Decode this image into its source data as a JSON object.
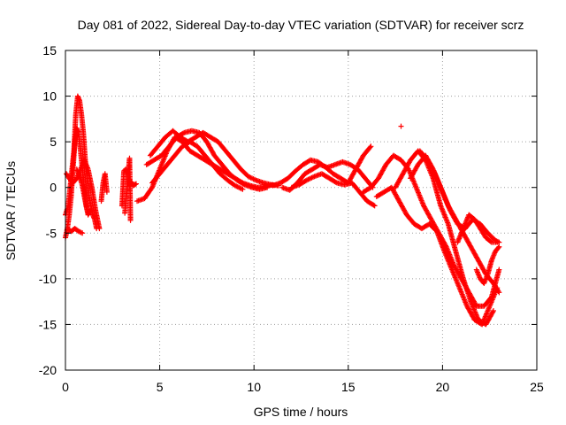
{
  "chart_data": {
    "type": "scatter",
    "title": "Day 081 of 2022, Sidereal Day-to-day VTEC variation (SDTVAR) for receiver scrz",
    "xlabel": "GPS time / hours",
    "ylabel": "SDTVAR / TECUs",
    "xlim": [
      0,
      25
    ],
    "ylim": [
      -20,
      15
    ],
    "xticks": [
      0,
      5,
      10,
      15,
      20,
      25
    ],
    "yticks": [
      -20,
      -15,
      -10,
      -5,
      0,
      5,
      10,
      15
    ],
    "xtick_labels": [
      "0",
      "5",
      "10",
      "15",
      "20",
      "25"
    ],
    "ytick_labels": [
      "-20",
      "-15",
      "-10",
      "-5",
      "0",
      "5",
      "10",
      "15"
    ],
    "grid": true,
    "marker": "+",
    "color": "#ff0000",
    "series": [
      {
        "name": "arc-early-spike",
        "x": [
          0.0,
          0.15,
          0.3,
          0.45,
          0.55,
          0.65,
          0.75,
          0.85,
          0.95,
          1.05,
          1.15,
          1.25,
          1.35,
          1.45,
          1.55,
          1.65
        ],
        "y": [
          -3,
          -2,
          1,
          4,
          8,
          10,
          9.5,
          8,
          6,
          3,
          1,
          -1,
          -2,
          -3,
          -3.5,
          -4.5
        ]
      },
      {
        "name": "arc-early-b",
        "x": [
          0.0,
          0.1,
          0.2,
          0.3,
          0.4,
          0.5,
          0.6,
          0.7,
          0.8,
          0.9,
          1.0,
          1.1,
          1.2
        ],
        "y": [
          -5.5,
          -4.5,
          -3,
          -1,
          2,
          5,
          6.5,
          6,
          4,
          2,
          0,
          -2,
          -2.8
        ]
      },
      {
        "name": "arc-early-c",
        "x": [
          0.05,
          0.2,
          0.4,
          0.6,
          0.8,
          1.0,
          1.2,
          1.4,
          1.6,
          1.8
        ],
        "y": [
          1.5,
          1,
          0.5,
          1,
          2,
          3,
          2,
          0,
          -2.5,
          -4.5
        ]
      },
      {
        "name": "arc-early-d",
        "x": [
          0.1,
          0.3,
          0.5,
          0.7,
          0.9
        ],
        "y": [
          -4.5,
          -4.8,
          -4.5,
          -4.8,
          -5
        ]
      },
      {
        "name": "arc-early-e",
        "x": [
          0.6,
          0.75,
          0.9,
          1.05,
          1.2,
          1.35
        ],
        "y": [
          2,
          1.2,
          0.2,
          -1.5,
          -3,
          -2.5
        ]
      },
      {
        "name": "arc-2h",
        "x": [
          1.9,
          2.0,
          2.1,
          2.2
        ],
        "y": [
          -1.5,
          0.5,
          1.5,
          -0.5
        ]
      },
      {
        "name": "arc-3h",
        "x": [
          3.0,
          3.1,
          3.2,
          3.3,
          3.4,
          3.5,
          3.6,
          3.75
        ],
        "y": [
          -2,
          1.8,
          2,
          1.5,
          0.2,
          0.6,
          0.2,
          0.4
        ]
      },
      {
        "name": "points-3h-lone",
        "x": [
          3.15,
          3.4,
          3.45
        ],
        "y": [
          -2.8,
          3.2,
          -3.6
        ]
      },
      {
        "name": "arc-main-a",
        "x": [
          3.8,
          4.2,
          4.6,
          5.0,
          5.4,
          5.8,
          6.2,
          6.6,
          7.0,
          7.4,
          7.8,
          8.2,
          8.6,
          9.0,
          9.4,
          9.8,
          10.2,
          10.6,
          11.0
        ],
        "y": [
          -1.5,
          -1.2,
          0,
          2,
          4,
          5.5,
          5,
          4,
          3.5,
          3,
          2.5,
          2,
          1.5,
          1,
          0.5,
          0.2,
          0,
          0.1,
          0.3
        ]
      },
      {
        "name": "arc-main-b",
        "x": [
          4.5,
          4.9,
          5.3,
          5.7,
          6.1,
          6.5,
          6.9,
          7.3,
          7.7,
          8.1,
          8.5,
          8.9,
          9.3,
          9.7,
          10.1,
          10.5,
          10.9,
          11.3
        ],
        "y": [
          3.5,
          4.5,
          5.5,
          6.2,
          5.5,
          5,
          5.5,
          6,
          5.5,
          5,
          4,
          3,
          2,
          1.2,
          0.8,
          0.5,
          0.3,
          0.2
        ]
      },
      {
        "name": "arc-main-c",
        "x": [
          4.3,
          4.7,
          5.1,
          5.5,
          5.9,
          6.3,
          6.7,
          7.1,
          7.5,
          7.9,
          8.3,
          8.7,
          9.1,
          9.5,
          9.9,
          10.3,
          10.7
        ],
        "y": [
          2.5,
          3,
          3.5,
          4.5,
          5.5,
          6,
          6.2,
          6,
          5,
          3.5,
          2.5,
          1.5,
          0.8,
          0.3,
          0,
          -0.2,
          0
        ]
      },
      {
        "name": "arc-main-d",
        "x": [
          4.6,
          5.0,
          5.4,
          5.8,
          6.2,
          6.6,
          7.0,
          7.4,
          7.8,
          8.2,
          8.6,
          9.0,
          9.4
        ],
        "y": [
          0.5,
          1.5,
          2.5,
          3.5,
          4.5,
          5,
          4.5,
          3.5,
          2.5,
          1.5,
          0.8,
          0.2,
          -0.2
        ]
      },
      {
        "name": "arc-mid-a",
        "x": [
          11.0,
          11.4,
          11.8,
          12.2,
          12.6,
          13.0,
          13.4,
          13.8,
          14.2,
          14.6,
          15.0,
          15.4,
          15.8,
          16.2
        ],
        "y": [
          0.2,
          0.5,
          1,
          1.8,
          2.5,
          3,
          2.8,
          2.2,
          1.5,
          1,
          0.5,
          2,
          3.5,
          4.5
        ]
      },
      {
        "name": "arc-mid-b",
        "x": [
          11.5,
          11.9,
          12.3,
          12.7,
          13.1,
          13.5,
          13.9,
          14.3,
          14.7,
          15.1,
          15.5,
          15.9,
          16.3
        ],
        "y": [
          0,
          -0.3,
          0.5,
          1.5,
          2,
          2.5,
          2.2,
          2.5,
          2.8,
          2.5,
          2,
          1,
          0
        ]
      },
      {
        "name": "arc-mid-c",
        "x": [
          12.0,
          12.4,
          12.8,
          13.2,
          13.6,
          14.0,
          14.4,
          14.8,
          15.2,
          15.6,
          16.0,
          16.4
        ],
        "y": [
          0,
          0.3,
          0.8,
          1.2,
          1.5,
          1,
          0.5,
          0.3,
          0.5,
          -0.5,
          -1.5,
          -2
        ]
      },
      {
        "name": "arc-late-a",
        "x": [
          15.8,
          16.2,
          16.6,
          17.0,
          17.4,
          17.8,
          18.2,
          18.6,
          19.0,
          19.4,
          19.8,
          20.2,
          20.6,
          21.0,
          21.4,
          21.8,
          22.2,
          22.6,
          23.0
        ],
        "y": [
          -0.5,
          0,
          1,
          2.5,
          3.5,
          3,
          2,
          0,
          -2,
          -3.5,
          -5,
          -6.5,
          -8.5,
          -10,
          -11.5,
          -13,
          -13,
          -12,
          -9
        ]
      },
      {
        "name": "arc-late-b",
        "x": [
          16.5,
          16.9,
          17.3,
          17.7,
          18.1,
          18.5,
          18.9,
          19.3,
          19.7,
          20.1,
          20.5,
          20.9,
          21.3,
          21.7,
          22.1,
          22.5,
          22.9
        ],
        "y": [
          -1,
          -0.5,
          0,
          -1.5,
          -3,
          -4,
          -4.5,
          -4,
          -4.8,
          -7,
          -9,
          -11,
          -13,
          -14.5,
          -15,
          -13,
          -11
        ]
      },
      {
        "name": "arc-late-c",
        "x": [
          17.5,
          17.9,
          18.3,
          18.7,
          19.1,
          19.5,
          19.9,
          20.3,
          20.7,
          21.1,
          21.5,
          21.9,
          22.3,
          22.7
        ],
        "y": [
          0,
          1.5,
          3,
          4,
          3,
          1,
          -2,
          -4,
          -7,
          -10,
          -12.5,
          -14.5,
          -15,
          -13.5
        ]
      },
      {
        "name": "arc-late-d",
        "x": [
          18.3,
          18.7,
          19.1,
          19.5,
          19.9,
          20.3,
          20.7,
          21.1,
          21.5,
          21.9,
          22.3,
          22.7,
          23.0
        ],
        "y": [
          1,
          2.5,
          3.5,
          2,
          0,
          -2,
          -3.5,
          -5,
          -6.5,
          -8,
          -9.5,
          -10.5,
          -11.5
        ]
      },
      {
        "name": "arc-late-e",
        "x": [
          18.8,
          19.2,
          19.6,
          20.0,
          20.4,
          20.8,
          21.2,
          21.6,
          22.0,
          22.4,
          22.8,
          23.0
        ],
        "y": [
          4,
          3,
          1.5,
          -0.5,
          -2.5,
          -4,
          -4.5,
          -3.5,
          -4,
          -5,
          -5.8,
          -6
        ]
      },
      {
        "name": "arc-late-f",
        "x": [
          20.8,
          21.1,
          21.4,
          21.7,
          22.0,
          22.3,
          22.6,
          22.9
        ],
        "y": [
          -6,
          -4.5,
          -3,
          -3.5,
          -4.5,
          -5.5,
          -6,
          -6
        ]
      },
      {
        "name": "arc-late-g",
        "x": [
          21.8,
          22.0,
          22.2,
          22.4,
          22.6,
          22.8,
          23.0
        ],
        "y": [
          -9,
          -10,
          -10.5,
          -9.5,
          -8,
          -7,
          -6.5
        ]
      },
      {
        "name": "point-late-lone",
        "x": [
          17.8
        ],
        "y": [
          6.7
        ]
      }
    ]
  }
}
